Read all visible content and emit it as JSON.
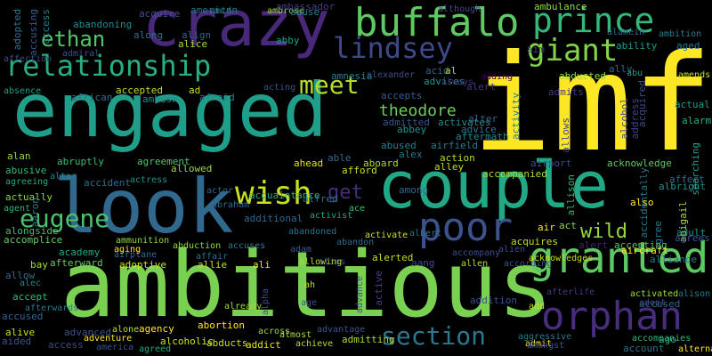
{
  "background": "#000000",
  "words": [
    {
      "text": "imf",
      "color": "#fde725"
    },
    {
      "text": "ambitious",
      "color": "#7ad151"
    },
    {
      "text": "engaged",
      "color": "#1f9e89"
    },
    {
      "text": "couple",
      "color": "#22a884"
    },
    {
      "text": "crazy",
      "color": "#482878"
    },
    {
      "text": "look",
      "color": "#31688e"
    },
    {
      "text": "buffalo",
      "color": "#5ec962"
    },
    {
      "text": "prince",
      "color": "#35b779"
    },
    {
      "text": "relationship",
      "color": "#29af7f"
    },
    {
      "text": "granted",
      "color": "#5ec962"
    },
    {
      "text": "orphan",
      "color": "#472d7b"
    },
    {
      "text": "poor",
      "color": "#3b528b"
    },
    {
      "text": "lindsey",
      "color": "#3e4989"
    },
    {
      "text": "giant",
      "color": "#84d44b"
    },
    {
      "text": "wish",
      "color": "#c8e020"
    },
    {
      "text": "section",
      "color": "#2a788e"
    },
    {
      "text": "meet",
      "color": "#b5de2b"
    },
    {
      "text": "ethan",
      "color": "#52c569"
    },
    {
      "text": "eugene",
      "color": "#4ac16d"
    },
    {
      "text": "theodore",
      "color": "#6ccd5a"
    },
    {
      "text": "get",
      "color": "#472d7b"
    },
    {
      "text": "wild",
      "color": "#95d840"
    },
    {
      "text": "accused",
      "color": "#32648e"
    },
    {
      "text": "acquire",
      "color": "#3b528b"
    },
    {
      "text": "amid",
      "color": "#25848e"
    },
    {
      "text": "ambrose",
      "color": "#a2da37"
    },
    {
      "text": "american",
      "color": "#2c728e"
    },
    {
      "text": "abuse",
      "color": "#26828e"
    },
    {
      "text": "ambassador",
      "color": "#433e85"
    },
    {
      "text": "although",
      "color": "#3e4989"
    },
    {
      "text": "ambulance",
      "color": "#8fd744"
    },
    {
      "text": "alamein",
      "color": "#306a8e"
    },
    {
      "text": "ambition",
      "color": "#277f8e"
    },
    {
      "text": "aged",
      "color": "#2a788e"
    },
    {
      "text": "ability",
      "color": "#1f9a8a"
    },
    {
      "text": "abandoning",
      "color": "#23898e"
    },
    {
      "text": "adopted",
      "color": "#2c728e"
    },
    {
      "text": "accusing",
      "color": "#365d8d"
    },
    {
      "text": "access",
      "color": "#287c8e"
    },
    {
      "text": "along",
      "color": "#2e6e8e"
    },
    {
      "text": "align",
      "color": "#34618d"
    },
    {
      "text": "alice",
      "color": "#a8db34"
    },
    {
      "text": "abby",
      "color": "#1fa188"
    },
    {
      "text": "admiral",
      "color": "#3a548c"
    },
    {
      "text": "affection",
      "color": "#3e4a89"
    },
    {
      "text": "aim",
      "color": "#3f4889"
    },
    {
      "text": "ally",
      "color": "#31668e"
    },
    {
      "text": "abu",
      "color": "#1e9b8a"
    },
    {
      "text": "amends",
      "color": "#c2df23"
    },
    {
      "text": "acid",
      "color": "#355f8d"
    },
    {
      "text": "al",
      "color": "#b8de29"
    },
    {
      "text": "amnesia",
      "color": "#27808e"
    },
    {
      "text": "alexander",
      "color": "#3d4e8a"
    },
    {
      "text": "advises",
      "color": "#1f958b"
    },
    {
      "text": "always",
      "color": "#482677"
    },
    {
      "text": "adding",
      "color": "#440154"
    },
    {
      "text": "abducted",
      "color": "#95d840"
    },
    {
      "text": "absence",
      "color": "#1f9f88"
    },
    {
      "text": "african",
      "color": "#2e6f8e"
    },
    {
      "text": "accepted",
      "color": "#bddf26"
    },
    {
      "text": "ad",
      "color": "#cae11f"
    },
    {
      "text": "ambush",
      "color": "#238a8d"
    },
    {
      "text": "afraid",
      "color": "#25858e"
    },
    {
      "text": "acting",
      "color": "#3c508b"
    },
    {
      "text": "accepts",
      "color": "#375b8d"
    },
    {
      "text": "alert",
      "color": "#453781"
    },
    {
      "text": "admits",
      "color": "#443983"
    },
    {
      "text": "actual",
      "color": "#1f9e89"
    },
    {
      "text": "alarm",
      "color": "#29af7f"
    },
    {
      "text": "admitted",
      "color": "#3a548c"
    },
    {
      "text": "activates",
      "color": "#228d8d"
    },
    {
      "text": "abbey",
      "color": "#20928c"
    },
    {
      "text": "alter",
      "color": "#33638d"
    },
    {
      "text": "advice",
      "color": "#2d708e"
    },
    {
      "text": "activity",
      "color": "#26818e"
    },
    {
      "text": "allows",
      "color": "#3f4788"
    },
    {
      "text": "alcohol",
      "color": "#3e4a89"
    },
    {
      "text": "address",
      "color": "#404688"
    },
    {
      "text": "acquired",
      "color": "#3d4e8a"
    },
    {
      "text": "alan",
      "color": "#90d743"
    },
    {
      "text": "abused",
      "color": "#287c8e"
    },
    {
      "text": "airfield",
      "color": "#2a788e"
    },
    {
      "text": "aftermath",
      "color": "#24878e"
    },
    {
      "text": "abusive",
      "color": "#35b779"
    },
    {
      "text": "abruptly",
      "color": "#3dbc74"
    },
    {
      "text": "agreement",
      "color": "#4ec36b"
    },
    {
      "text": "allowed",
      "color": "#9bd93c"
    },
    {
      "text": "able",
      "color": "#31688e"
    },
    {
      "text": "alex",
      "color": "#2a778e"
    },
    {
      "text": "action",
      "color": "#b5de2b"
    },
    {
      "text": "airport",
      "color": "#3e4c8a"
    },
    {
      "text": "acknowledge",
      "color": "#5ec962"
    },
    {
      "text": "affect",
      "color": "#2f6b8e"
    },
    {
      "text": "albright",
      "color": "#20928c"
    },
    {
      "text": "searching",
      "color": "#1fa187"
    },
    {
      "text": "agreeing",
      "color": "#26ad81"
    },
    {
      "text": "altar",
      "color": "#23898e"
    },
    {
      "text": "accident",
      "color": "#2e6e8e"
    },
    {
      "text": "actress",
      "color": "#1f948c"
    },
    {
      "text": "ahead",
      "color": "#e5e419"
    },
    {
      "text": "afford",
      "color": "#c8e020"
    },
    {
      "text": "aboard",
      "color": "#addc30"
    },
    {
      "text": "alley",
      "color": "#bddf26"
    },
    {
      "text": "accompanied",
      "color": "#a8db34"
    },
    {
      "text": "actually",
      "color": "#8bd646"
    },
    {
      "text": "actor",
      "color": "#33638d"
    },
    {
      "text": "acquaintance",
      "color": "#29af7f"
    },
    {
      "text": "alfred",
      "color": "#2c738e"
    },
    {
      "text": "ace",
      "color": "#3dbc74"
    },
    {
      "text": "among",
      "color": "#31678e"
    },
    {
      "text": "allison",
      "color": "#35b779"
    },
    {
      "text": "accidentally",
      "color": "#2a768e"
    },
    {
      "text": "also",
      "color": "#fde725"
    },
    {
      "text": "abigail",
      "color": "#addc30"
    },
    {
      "text": "agent",
      "color": "#2fb47c"
    },
    {
      "text": "aaron",
      "color": "#2a788e"
    },
    {
      "text": "additional",
      "color": "#31668e"
    },
    {
      "text": "activist",
      "color": "#22a884"
    },
    {
      "text": "activate",
      "color": "#cae11f"
    },
    {
      "text": "air",
      "color": "#fde725"
    },
    {
      "text": "act",
      "color": "#84d44b"
    },
    {
      "text": "agree",
      "color": "#2a788e"
    },
    {
      "text": "alongside",
      "color": "#44bf70"
    },
    {
      "text": "abandoned",
      "color": "#2c728e"
    },
    {
      "text": "albert",
      "color": "#2c728e"
    },
    {
      "text": "alert",
      "color": "#481f70"
    },
    {
      "text": "adult",
      "color": "#1f968b"
    },
    {
      "text": "accomplice",
      "color": "#65cb5e"
    },
    {
      "text": "ammunition",
      "color": "#90d743"
    },
    {
      "text": "abduction",
      "color": "#95d840"
    },
    {
      "text": "accuses",
      "color": "#2a788e"
    },
    {
      "text": "adam",
      "color": "#365c8d"
    },
    {
      "text": "abandon",
      "color": "#2f6c8e"
    },
    {
      "text": "acquires",
      "color": "#c2df23"
    },
    {
      "text": "accepting",
      "color": "#52c569"
    },
    {
      "text": "agrees",
      "color": "#3a548c"
    },
    {
      "text": "academy",
      "color": "#22a884"
    },
    {
      "text": "airplane",
      "color": "#2f6c8e"
    },
    {
      "text": "affair",
      "color": "#2d718e"
    },
    {
      "text": "alias",
      "color": "#3f4889"
    },
    {
      "text": "accompany",
      "color": "#3c4f8a"
    },
    {
      "text": "alien",
      "color": "#3c4f8a"
    },
    {
      "text": "acknowledges",
      "color": "#c8e020"
    },
    {
      "text": "aircraft",
      "color": "#fde725"
    },
    {
      "text": "alliance",
      "color": "#2a788e"
    },
    {
      "text": "bay",
      "color": "#a2da37"
    },
    {
      "text": "afterward",
      "color": "#65cb5e"
    },
    {
      "text": "adoptive",
      "color": "#cae11f"
    },
    {
      "text": "allie",
      "color": "#bddf26"
    },
    {
      "text": "ali",
      "color": "#e5e419"
    },
    {
      "text": "allowing",
      "color": "#a8db34"
    },
    {
      "text": "alerted",
      "color": "#c2df23"
    },
    {
      "text": "aang",
      "color": "#3e4c8a"
    },
    {
      "text": "allen",
      "color": "#b5de2b"
    },
    {
      "text": "according",
      "color": "#3a538b"
    },
    {
      "text": "allow",
      "color": "#2e6e8e"
    },
    {
      "text": "alec",
      "color": "#238a8d"
    },
    {
      "text": "active",
      "color": "#433e85"
    },
    {
      "text": "afterlife",
      "color": "#443983"
    },
    {
      "text": "activated",
      "color": "#a2da37"
    },
    {
      "text": "alison",
      "color": "#2a788e"
    },
    {
      "text": "accept",
      "color": "#35b779"
    },
    {
      "text": "afterwards",
      "color": "#2a788e"
    },
    {
      "text": "age",
      "color": "#3a548c"
    },
    {
      "text": "alpha",
      "color": "#3d4e8a"
    },
    {
      "text": "advance",
      "color": "#3a548c"
    },
    {
      "text": "addition",
      "color": "#3c508b"
    },
    {
      "text": "add",
      "color": "#cae11f"
    },
    {
      "text": "adopt",
      "color": "#3e4989"
    },
    {
      "text": "accused",
      "color": "#32648e"
    },
    {
      "text": "already",
      "color": "#a2da37"
    },
    {
      "text": "ah",
      "color": "#c2df23"
    },
    {
      "text": "alive",
      "color": "#c8e020"
    },
    {
      "text": "advanced",
      "color": "#3b528b"
    },
    {
      "text": "alone",
      "color": "#b5de2b"
    },
    {
      "text": "agency",
      "color": "#fde725"
    },
    {
      "text": "abortion",
      "color": "#fde725"
    },
    {
      "text": "across",
      "color": "#95d840"
    },
    {
      "text": "almost",
      "color": "#a8db34"
    },
    {
      "text": "advantage",
      "color": "#3a548c"
    },
    {
      "text": "aggressive",
      "color": "#2a788e"
    },
    {
      "text": "admit",
      "color": "#fde725"
    },
    {
      "text": "amongst",
      "color": "#3a548c"
    },
    {
      "text": "accompanies",
      "color": "#35b779"
    },
    {
      "text": "ago",
      "color": "#22a884"
    },
    {
      "text": "account",
      "color": "#2c728e"
    },
    {
      "text": "alternate",
      "color": "#fde725"
    },
    {
      "text": "aided",
      "color": "#3a548c"
    },
    {
      "text": "access",
      "color": "#3e4989"
    },
    {
      "text": "adventure",
      "color": "#fde725"
    },
    {
      "text": "america",
      "color": "#3a548c"
    },
    {
      "text": "agreed",
      "color": "#22a884"
    },
    {
      "text": "alcoholic",
      "color": "#cae11f"
    },
    {
      "text": "abducts",
      "color": "#cae11f"
    },
    {
      "text": "addict",
      "color": "#e5e419"
    },
    {
      "text": "achieve",
      "color": "#b5de2b"
    },
    {
      "text": "admitting",
      "color": "#addc30"
    },
    {
      "text": "aging",
      "color": "#fde725"
    },
    {
      "text": "abraham",
      "color": "#31688e"
    },
    {
      "text": "ambushed",
      "color": "#1f9e89"
    }
  ]
}
